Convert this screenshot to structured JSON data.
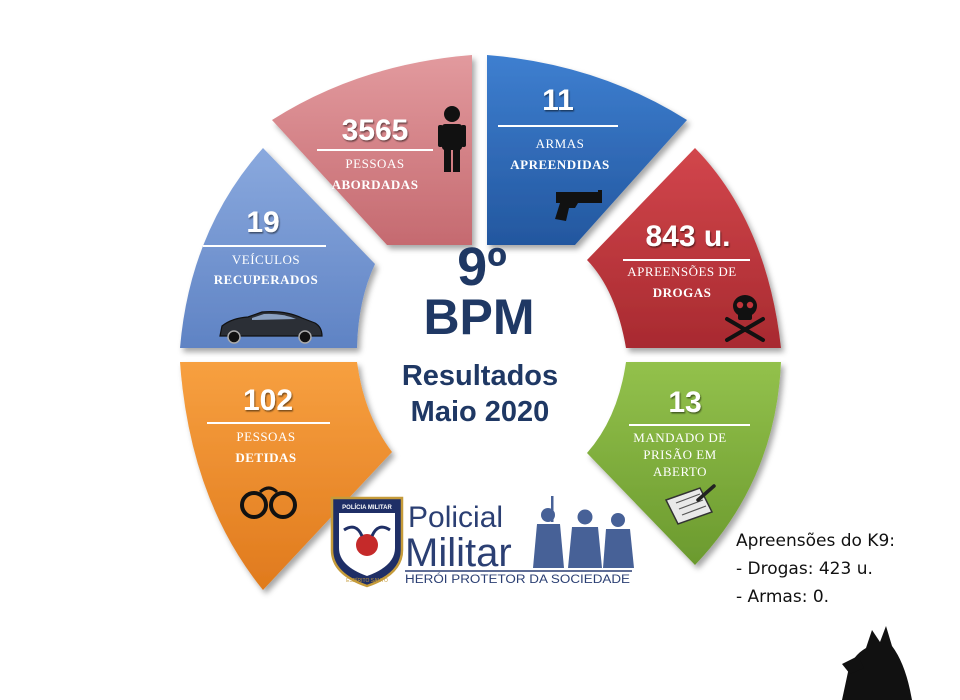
{
  "center": {
    "rank": "9º",
    "unit": "BPM",
    "line1": "Resultados",
    "line2": "Maio 2020"
  },
  "segments": [
    {
      "id": "pessoas-abordadas",
      "value": "3565",
      "label1": "PESSOAS",
      "label2": "ABORDADAS",
      "color": "#d47a7f",
      "icon": "person-icon"
    },
    {
      "id": "armas-apreendidas",
      "value": "11",
      "label1": "ARMAS",
      "label2": "APREENDIDAS",
      "color": "#2f6bbf",
      "icon": "pistol-icon"
    },
    {
      "id": "apreensoes-drogas",
      "value": "843 u.",
      "label1": "APREENSÕES DE",
      "label2": "DROGAS",
      "color": "#c0343a",
      "icon": "skull-crossbones-icon"
    },
    {
      "id": "mandado-prisao",
      "value": "13",
      "label1": "MANDADO  DE",
      "label2": "PRISÃO  EM",
      "label3": "ABERTO",
      "color": "#7fae3c",
      "icon": "document-pen-icon"
    },
    {
      "id": "pessoas-detidas",
      "value": "102",
      "label1": "PESSOAS",
      "label2": "DETIDAS",
      "color": "#f08a2a",
      "icon": "handcuffs-icon"
    },
    {
      "id": "veiculos-recuperados",
      "value": "19",
      "label1": "VEÍCULOS",
      "label2": "RECUPERADOS",
      "color": "#6f92d0",
      "icon": "car-icon"
    }
  ],
  "logo": {
    "word1": "Policial",
    "word2": "Militar",
    "tagline": "HERÓI PROTETOR DA SOCIEDADE",
    "badge_text_top": "POLÍCIA MILITAR",
    "badge_text_bottom": "ESPÍRITO SANTO",
    "brand_color": "#2b3f73"
  },
  "k9": {
    "title": "Apreensões do K9:",
    "drugs": "- Drogas: 423 u.",
    "weapons": "- Armas: 0."
  },
  "icons": {
    "dog": "dog-silhouette-icon"
  }
}
